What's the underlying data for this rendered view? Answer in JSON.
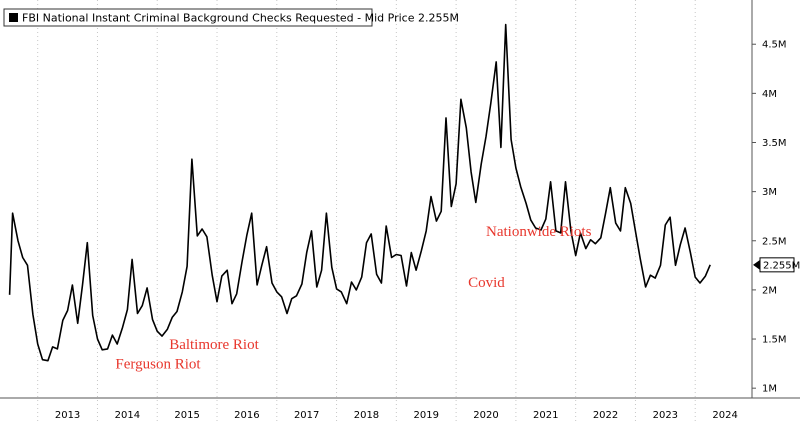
{
  "chart_data": {
    "type": "line",
    "title": "FBI National Instant Criminal Background Checks Requested - Mid Price 2.255M",
    "legend": {
      "label": "FBI National Instant Criminal Background Checks Requested - Mid Price 2.255M",
      "swatch_color": "#000000",
      "position": "top-left"
    },
    "line_color": "#000000",
    "annotation_color": "#e8372d",
    "y_axis": {
      "side": "right",
      "ylim": [
        900000,
        4950000
      ],
      "ticks": [
        1000000,
        1500000,
        2000000,
        2500000,
        3000000,
        3500000,
        4000000,
        4500000
      ],
      "tick_labels": [
        "1M",
        "1.5M",
        "2M",
        "2.5M",
        "3M",
        "3.5M",
        "4M",
        "4.5M"
      ]
    },
    "x_axis": {
      "xlim": [
        2012.52,
        2024.95
      ],
      "year_labels": [
        "2013",
        "2014",
        "2015",
        "2016",
        "2017",
        "2018",
        "2019",
        "2020",
        "2021",
        "2022",
        "2023",
        "2024"
      ],
      "grid": "vertical dotted at year boundaries"
    },
    "last_value_label": "2.255M",
    "annotations": [
      {
        "text": "Ferguson Riot",
        "x": 2014.3,
        "y": 1200000
      },
      {
        "text": "Baltimore Riot",
        "x": 2015.2,
        "y": 1400000
      },
      {
        "text": "Nationwide Riots",
        "x": 2020.5,
        "y": 2550000
      },
      {
        "text": "Covid",
        "x": 2020.2,
        "y": 2030000
      }
    ],
    "series": [
      {
        "values": [
          [
            2012.53,
            1950000
          ],
          [
            2012.58,
            2780000
          ],
          [
            2012.67,
            2500000
          ],
          [
            2012.75,
            2330000
          ],
          [
            2012.83,
            2250000
          ],
          [
            2012.92,
            1750000
          ],
          [
            2013.0,
            1450000
          ],
          [
            2013.08,
            1290000
          ],
          [
            2013.17,
            1280000
          ],
          [
            2013.25,
            1420000
          ],
          [
            2013.33,
            1400000
          ],
          [
            2013.42,
            1690000
          ],
          [
            2013.5,
            1790000
          ],
          [
            2013.58,
            2050000
          ],
          [
            2013.67,
            1660000
          ],
          [
            2013.75,
            2050000
          ],
          [
            2013.83,
            2480000
          ],
          [
            2013.92,
            1740000
          ],
          [
            2014.0,
            1500000
          ],
          [
            2014.08,
            1390000
          ],
          [
            2014.17,
            1400000
          ],
          [
            2014.25,
            1540000
          ],
          [
            2014.33,
            1450000
          ],
          [
            2014.42,
            1620000
          ],
          [
            2014.5,
            1800000
          ],
          [
            2014.58,
            2310000
          ],
          [
            2014.67,
            1760000
          ],
          [
            2014.75,
            1840000
          ],
          [
            2014.83,
            2020000
          ],
          [
            2014.92,
            1700000
          ],
          [
            2015.0,
            1580000
          ],
          [
            2015.08,
            1530000
          ],
          [
            2015.17,
            1600000
          ],
          [
            2015.25,
            1720000
          ],
          [
            2015.33,
            1780000
          ],
          [
            2015.42,
            1980000
          ],
          [
            2015.5,
            2240000
          ],
          [
            2015.58,
            3330000
          ],
          [
            2015.67,
            2550000
          ],
          [
            2015.75,
            2620000
          ],
          [
            2015.83,
            2540000
          ],
          [
            2015.92,
            2150000
          ],
          [
            2016.0,
            1880000
          ],
          [
            2016.08,
            2140000
          ],
          [
            2016.17,
            2200000
          ],
          [
            2016.25,
            1860000
          ],
          [
            2016.33,
            1960000
          ],
          [
            2016.42,
            2290000
          ],
          [
            2016.5,
            2560000
          ],
          [
            2016.58,
            2780000
          ],
          [
            2016.67,
            2050000
          ],
          [
            2016.75,
            2250000
          ],
          [
            2016.83,
            2440000
          ],
          [
            2016.92,
            2070000
          ],
          [
            2017.0,
            1980000
          ],
          [
            2017.08,
            1930000
          ],
          [
            2017.17,
            1760000
          ],
          [
            2017.25,
            1910000
          ],
          [
            2017.33,
            1940000
          ],
          [
            2017.42,
            2060000
          ],
          [
            2017.5,
            2380000
          ],
          [
            2017.58,
            2600000
          ],
          [
            2017.67,
            2030000
          ],
          [
            2017.75,
            2200000
          ],
          [
            2017.83,
            2780000
          ],
          [
            2017.92,
            2230000
          ],
          [
            2018.0,
            2010000
          ],
          [
            2018.08,
            1980000
          ],
          [
            2018.17,
            1860000
          ],
          [
            2018.25,
            2080000
          ],
          [
            2018.33,
            2000000
          ],
          [
            2018.42,
            2130000
          ],
          [
            2018.5,
            2480000
          ],
          [
            2018.58,
            2570000
          ],
          [
            2018.67,
            2160000
          ],
          [
            2018.75,
            2070000
          ],
          [
            2018.83,
            2650000
          ],
          [
            2018.92,
            2330000
          ],
          [
            2019.0,
            2360000
          ],
          [
            2019.08,
            2350000
          ],
          [
            2019.17,
            2040000
          ],
          [
            2019.25,
            2380000
          ],
          [
            2019.33,
            2200000
          ],
          [
            2019.42,
            2400000
          ],
          [
            2019.5,
            2600000
          ],
          [
            2019.58,
            2950000
          ],
          [
            2019.67,
            2700000
          ],
          [
            2019.75,
            2800000
          ],
          [
            2019.83,
            3750000
          ],
          [
            2019.92,
            2850000
          ],
          [
            2020.0,
            3080000
          ],
          [
            2020.08,
            3940000
          ],
          [
            2020.17,
            3650000
          ],
          [
            2020.25,
            3200000
          ],
          [
            2020.33,
            2890000
          ],
          [
            2020.42,
            3280000
          ],
          [
            2020.5,
            3560000
          ],
          [
            2020.58,
            3900000
          ],
          [
            2020.67,
            4320000
          ],
          [
            2020.75,
            3450000
          ],
          [
            2020.83,
            4700000
          ],
          [
            2020.92,
            3530000
          ],
          [
            2021.0,
            3240000
          ],
          [
            2021.08,
            3050000
          ],
          [
            2021.17,
            2880000
          ],
          [
            2021.25,
            2710000
          ],
          [
            2021.33,
            2630000
          ],
          [
            2021.42,
            2610000
          ],
          [
            2021.5,
            2720000
          ],
          [
            2021.58,
            3100000
          ],
          [
            2021.67,
            2600000
          ],
          [
            2021.75,
            2580000
          ],
          [
            2021.83,
            3100000
          ],
          [
            2021.92,
            2600000
          ],
          [
            2022.0,
            2350000
          ],
          [
            2022.08,
            2580000
          ],
          [
            2022.17,
            2420000
          ],
          [
            2022.25,
            2510000
          ],
          [
            2022.33,
            2470000
          ],
          [
            2022.42,
            2530000
          ],
          [
            2022.5,
            2780000
          ],
          [
            2022.58,
            3040000
          ],
          [
            2022.67,
            2680000
          ],
          [
            2022.75,
            2600000
          ],
          [
            2022.83,
            3040000
          ],
          [
            2022.92,
            2880000
          ],
          [
            2023.0,
            2600000
          ],
          [
            2023.08,
            2320000
          ],
          [
            2023.17,
            2030000
          ],
          [
            2023.25,
            2150000
          ],
          [
            2023.33,
            2120000
          ],
          [
            2023.42,
            2250000
          ],
          [
            2023.5,
            2660000
          ],
          [
            2023.58,
            2740000
          ],
          [
            2023.67,
            2250000
          ],
          [
            2023.75,
            2460000
          ],
          [
            2023.83,
            2630000
          ],
          [
            2023.92,
            2380000
          ],
          [
            2024.0,
            2130000
          ],
          [
            2024.08,
            2070000
          ],
          [
            2024.17,
            2140000
          ],
          [
            2024.25,
            2255000
          ]
        ]
      }
    ]
  }
}
